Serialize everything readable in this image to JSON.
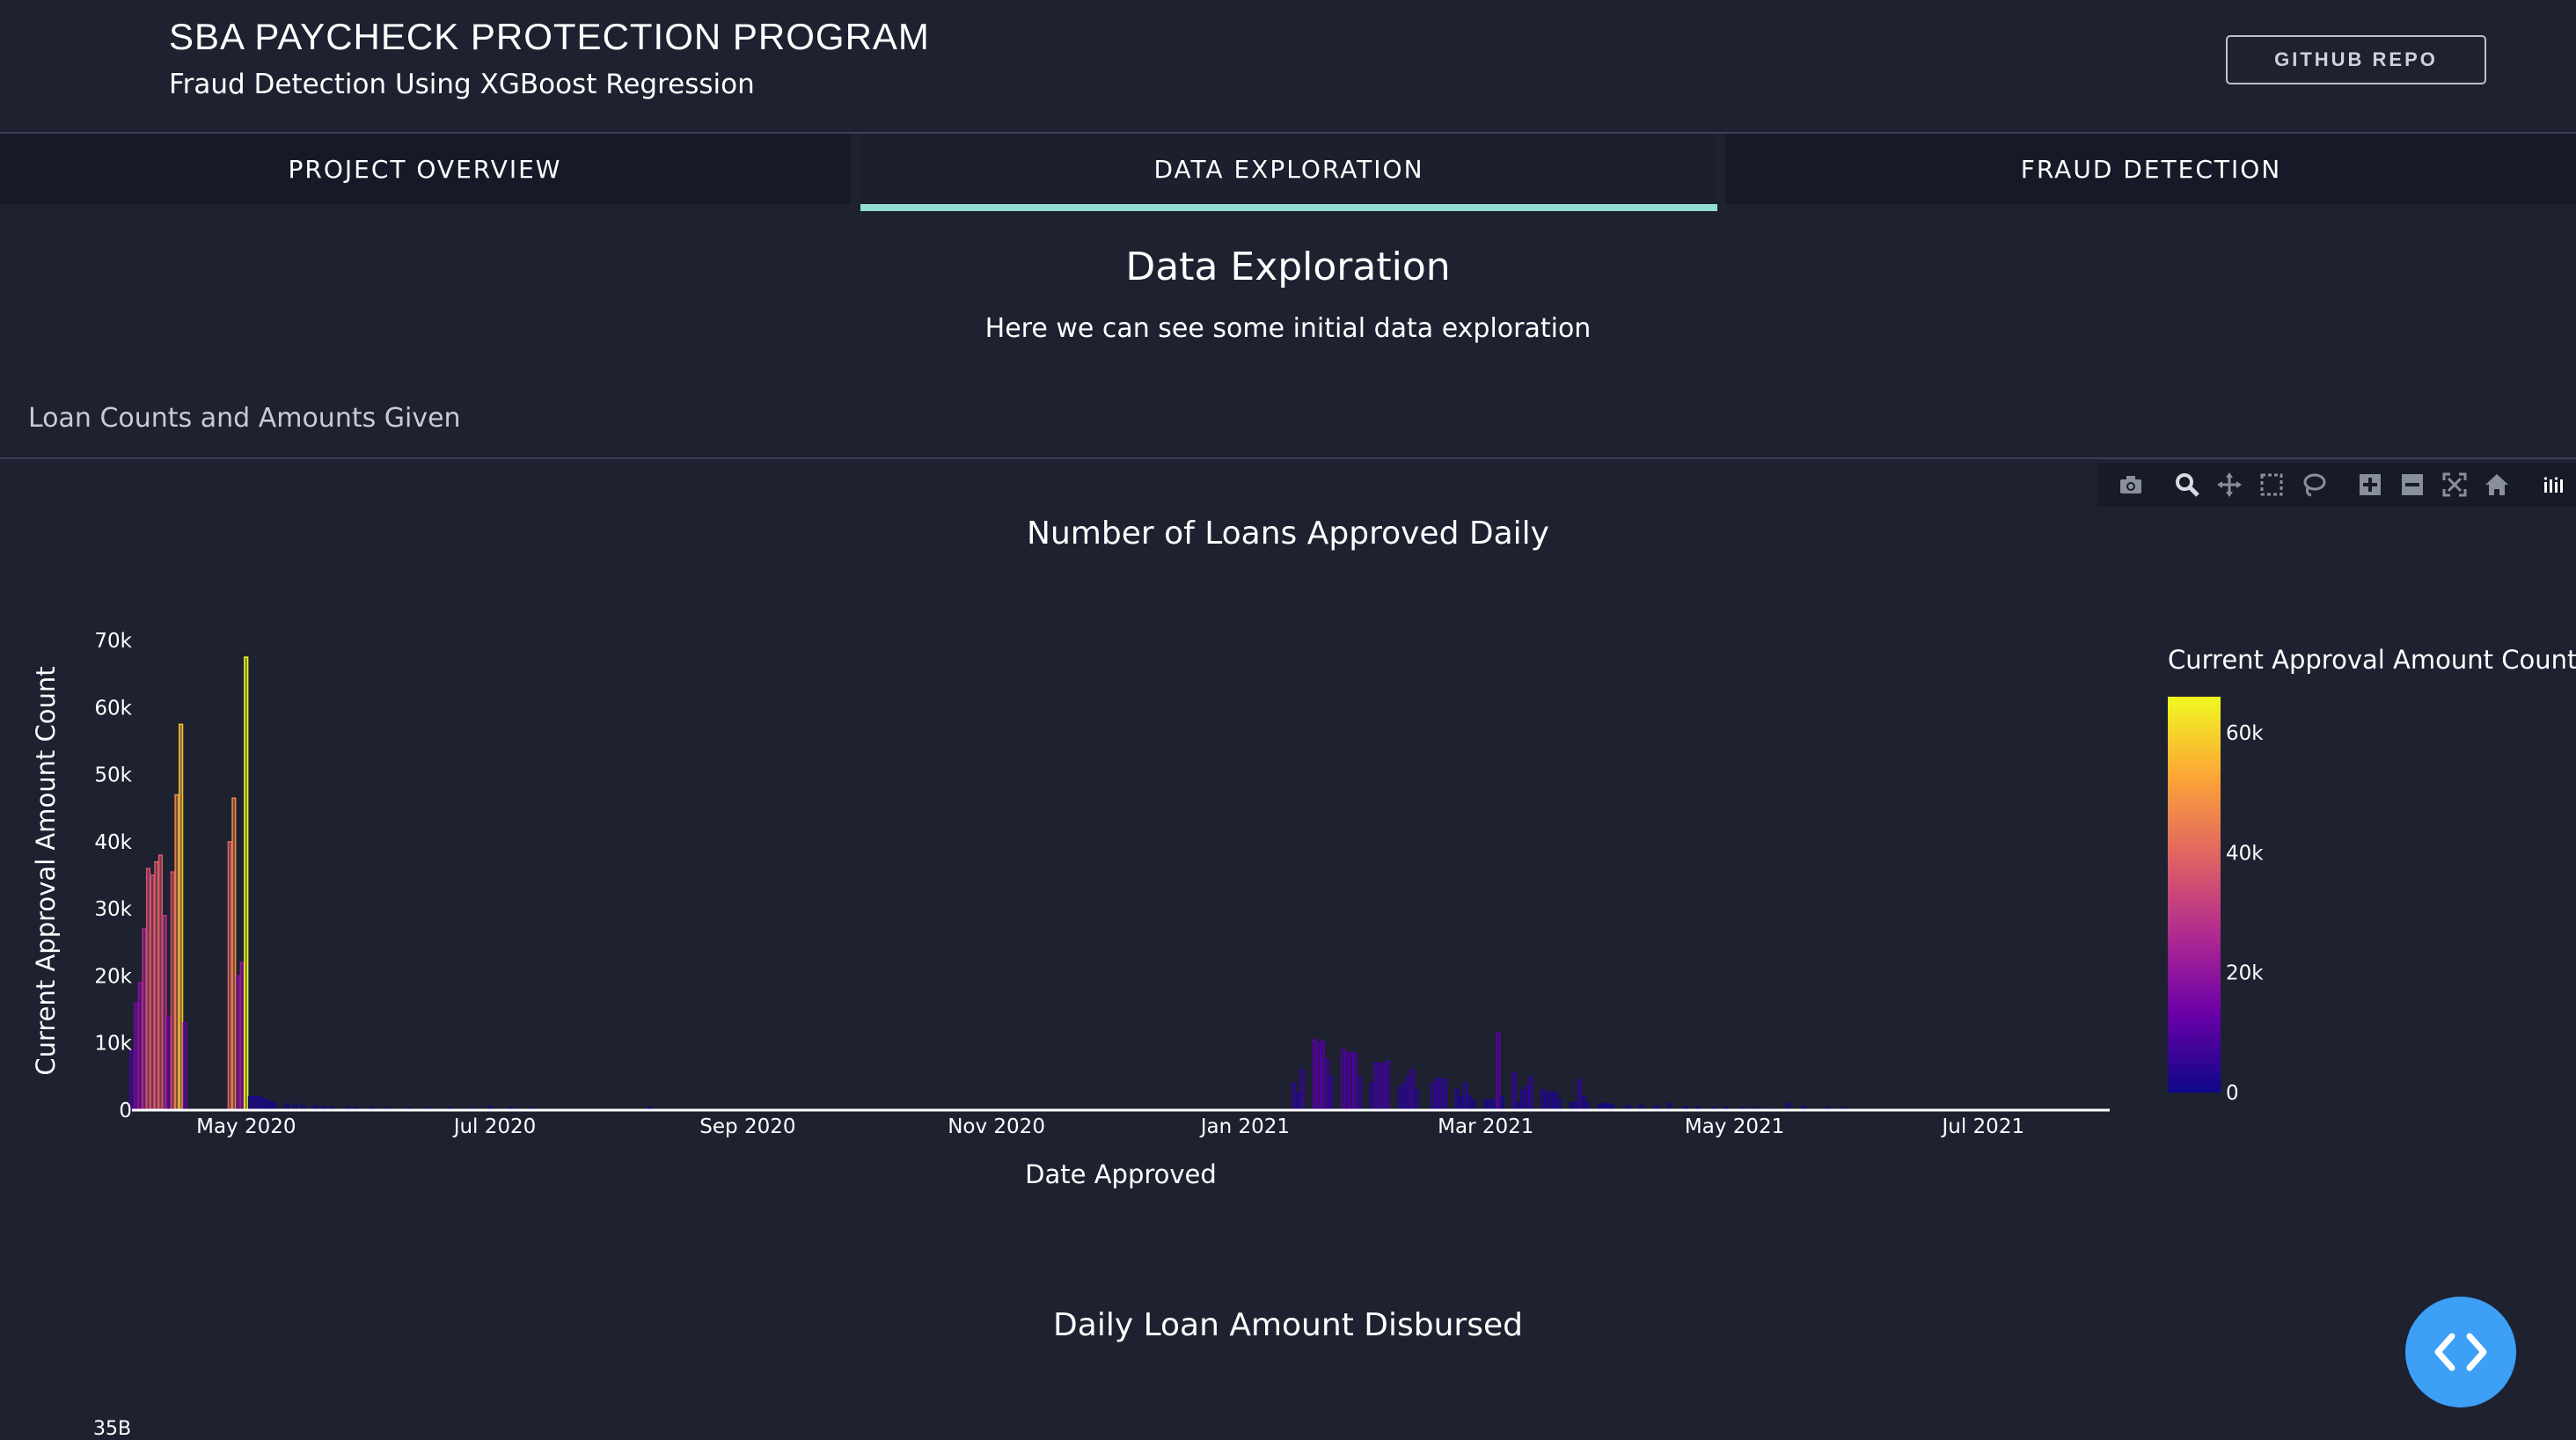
{
  "header": {
    "title": "SBA PAYCHECK PROTECTION PROGRAM",
    "subtitle": "Fraud Detection Using XGBoost Regression",
    "github_label": "GITHUB REPO"
  },
  "tabs": [
    {
      "label": "PROJECT OVERVIEW",
      "active": false
    },
    {
      "label": "DATA EXPLORATION",
      "active": true
    },
    {
      "label": "FRAUD DETECTION",
      "active": false
    }
  ],
  "section": {
    "title": "Data Exploration",
    "description": "Here we can see some initial data exploration"
  },
  "card": {
    "label": "Loan Counts and Amounts Given"
  },
  "modebar": {
    "icons": [
      "camera-icon",
      "zoom-icon",
      "pan-icon",
      "box-select-icon",
      "lasso-icon",
      "zoom-in-icon",
      "zoom-out-icon",
      "autoscale-icon",
      "reset-axes-icon",
      "plotly-logo-icon"
    ]
  },
  "colors": {
    "background": "#1e2130",
    "tab_background": "#161a28",
    "tab_active_underline": "#91dfd2",
    "fab": "#3d9ff5",
    "colorscale": [
      "#0d0887",
      "#6a00a8",
      "#b12a90",
      "#e16462",
      "#fca636",
      "#f0f921"
    ]
  },
  "chart_data": [
    {
      "type": "bar",
      "title": "Number of Loans Approved Daily",
      "xlabel": "Date Approved",
      "ylabel": "Current Approval Amount Count",
      "ylim": [
        0,
        70000
      ],
      "y_ticks": [
        0,
        10000,
        20000,
        30000,
        40000,
        50000,
        60000,
        70000
      ],
      "y_tick_labels": [
        "0",
        "10k",
        "20k",
        "30k",
        "40k",
        "50k",
        "60k",
        "70k"
      ],
      "x_range": [
        "2020-04-03",
        "2021-08-01"
      ],
      "x_ticks": [
        "2020-05-01",
        "2020-07-01",
        "2020-09-01",
        "2020-11-01",
        "2021-01-01",
        "2021-03-01",
        "2021-05-01",
        "2021-07-01"
      ],
      "x_tick_labels": [
        "May 2020",
        "Jul 2020",
        "Sep 2020",
        "Nov 2020",
        "Jan 2021",
        "Mar 2021",
        "May 2021",
        "Jul 2021"
      ],
      "colorbar": {
        "title": "Current Approval Amount Count",
        "range": [
          0,
          66000
        ],
        "ticks": [
          0,
          20000,
          40000,
          60000
        ],
        "tick_labels": [
          "0",
          "20k",
          "40k",
          "60k"
        ]
      },
      "grid": false,
      "legend": "colorbar-right",
      "x": [
        "2020-04-03",
        "2020-04-04",
        "2020-04-05",
        "2020-04-06",
        "2020-04-07",
        "2020-04-08",
        "2020-04-09",
        "2020-04-10",
        "2020-04-11",
        "2020-04-12",
        "2020-04-13",
        "2020-04-14",
        "2020-04-15",
        "2020-04-16",
        "2020-04-27",
        "2020-04-28",
        "2020-04-29",
        "2020-04-30",
        "2020-05-01",
        "2020-05-02",
        "2020-05-03",
        "2020-05-04",
        "2020-05-05",
        "2020-05-06",
        "2020-05-07",
        "2020-05-08",
        "2020-05-11",
        "2020-05-13",
        "2020-05-15",
        "2020-05-18",
        "2020-05-20",
        "2020-05-22",
        "2020-05-26",
        "2020-05-28",
        "2020-06-01",
        "2020-06-05",
        "2020-06-10",
        "2020-06-15",
        "2020-06-20",
        "2020-06-25",
        "2020-06-30",
        "2020-07-05",
        "2020-07-10",
        "2020-08-08",
        "2021-01-13",
        "2021-01-14",
        "2021-01-15",
        "2021-01-18",
        "2021-01-19",
        "2021-01-20",
        "2021-01-21",
        "2021-01-22",
        "2021-01-25",
        "2021-01-26",
        "2021-01-27",
        "2021-01-28",
        "2021-01-29",
        "2021-02-01",
        "2021-02-02",
        "2021-02-03",
        "2021-02-04",
        "2021-02-05",
        "2021-02-08",
        "2021-02-09",
        "2021-02-10",
        "2021-02-11",
        "2021-02-12",
        "2021-02-16",
        "2021-02-17",
        "2021-02-18",
        "2021-02-19",
        "2021-02-22",
        "2021-02-23",
        "2021-02-24",
        "2021-02-25",
        "2021-02-26",
        "2021-03-01",
        "2021-03-02",
        "2021-03-03",
        "2021-03-04",
        "2021-03-05",
        "2021-03-08",
        "2021-03-09",
        "2021-03-10",
        "2021-03-11",
        "2021-03-12",
        "2021-03-15",
        "2021-03-16",
        "2021-03-17",
        "2021-03-18",
        "2021-03-19",
        "2021-03-22",
        "2021-03-23",
        "2021-03-24",
        "2021-03-25",
        "2021-03-26",
        "2021-03-29",
        "2021-03-30",
        "2021-03-31",
        "2021-04-01",
        "2021-04-05",
        "2021-04-08",
        "2021-04-12",
        "2021-04-15",
        "2021-04-19",
        "2021-04-22",
        "2021-04-26",
        "2021-04-29",
        "2021-05-03",
        "2021-05-06",
        "2021-05-10",
        "2021-05-14",
        "2021-05-18",
        "2021-05-24",
        "2021-05-28"
      ],
      "values": [
        9000,
        16000,
        19000,
        27000,
        36000,
        35000,
        37000,
        38000,
        29000,
        14000,
        35500,
        47000,
        57500,
        13000,
        40000,
        46500,
        20000,
        22000,
        67500,
        2000,
        2000,
        2000,
        1800,
        1500,
        1200,
        1000,
        900,
        800,
        700,
        600,
        500,
        400,
        450,
        350,
        400,
        300,
        300,
        250,
        300,
        250,
        500,
        350,
        300,
        400,
        4000,
        2500,
        6000,
        10500,
        10000,
        10300,
        7500,
        5000,
        9000,
        8500,
        8600,
        8400,
        5000,
        4000,
        7000,
        7000,
        6800,
        7300,
        3500,
        4000,
        5000,
        6000,
        3000,
        4000,
        4600,
        4600,
        4600,
        3100,
        2000,
        4000,
        2100,
        1500,
        1500,
        1500,
        1500,
        11500,
        2000,
        5500,
        1000,
        3000,
        3500,
        5000,
        3000,
        2500,
        2700,
        2600,
        1500,
        1000,
        1200,
        4500,
        2000,
        1000,
        800,
        1000,
        900,
        800,
        700,
        700,
        600,
        1000,
        500,
        400,
        300,
        400,
        300,
        300,
        200,
        1000,
        500,
        400,
        300
      ]
    },
    {
      "type": "bar",
      "title": "Daily Loan Amount Disbursed",
      "y_tick_labels": [
        "35B"
      ]
    }
  ]
}
